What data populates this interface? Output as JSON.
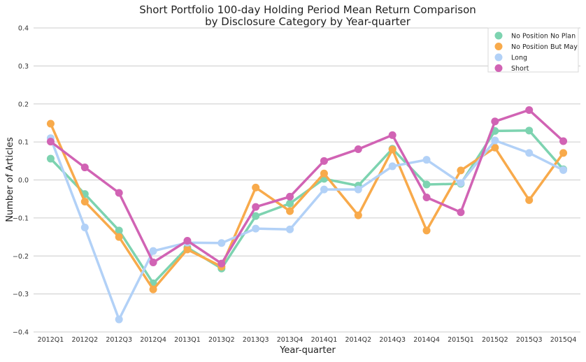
{
  "chart_data": {
    "type": "line",
    "title": "Short Portfolio 100-day Holding Period Mean Return Comparison",
    "subtitle": "by Disclosure Category by Year-quarter",
    "xlabel": "Year-quarter",
    "ylabel": "Number of Articles",
    "ylim": [
      -0.4,
      0.4
    ],
    "yticks": [
      -0.4,
      -0.3,
      -0.2,
      -0.1,
      0.0,
      0.1,
      0.2,
      0.3,
      0.4
    ],
    "ytick_labels": [
      "−0.4",
      "−0.3",
      "−0.2",
      "−0.1",
      "0.0",
      "0.1",
      "0.2",
      "0.3",
      "0.4"
    ],
    "grid": "horizontal",
    "legend_position": "top-right",
    "categories": [
      "2012Q1",
      "2012Q2",
      "2012Q3",
      "2012Q4",
      "2013Q1",
      "2013Q2",
      "2013Q3",
      "2013Q4",
      "2014Q1",
      "2014Q2",
      "2014Q3",
      "2014Q4",
      "2015Q1",
      "2015Q2",
      "2015Q3",
      "2015Q4"
    ],
    "series": [
      {
        "name": "No Position No Plan",
        "color": "#7dd3b0",
        "values": [
          0.056,
          -0.037,
          -0.133,
          -0.272,
          -0.178,
          -0.233,
          -0.095,
          -0.062,
          0.003,
          -0.015,
          0.082,
          -0.012,
          -0.01,
          0.129,
          0.13,
          0.028
        ]
      },
      {
        "name": "No Position But May",
        "color": "#f8aa4b",
        "values": [
          0.148,
          -0.057,
          -0.15,
          -0.288,
          -0.183,
          -0.228,
          -0.02,
          -0.082,
          0.017,
          -0.093,
          0.08,
          -0.133,
          0.025,
          0.085,
          -0.053,
          0.071
        ]
      },
      {
        "name": "Long",
        "color": "#b2d1f7",
        "values": [
          0.11,
          -0.125,
          -0.367,
          -0.187,
          -0.165,
          -0.166,
          -0.128,
          -0.13,
          -0.025,
          -0.025,
          0.036,
          0.053,
          -0.008,
          0.104,
          0.071,
          0.026
        ]
      },
      {
        "name": "Short",
        "color": "#d163b4",
        "values": [
          0.101,
          0.033,
          -0.034,
          -0.217,
          -0.16,
          -0.22,
          -0.071,
          -0.044,
          0.05,
          0.081,
          0.118,
          -0.046,
          -0.085,
          0.154,
          0.184,
          0.102
        ]
      }
    ]
  }
}
